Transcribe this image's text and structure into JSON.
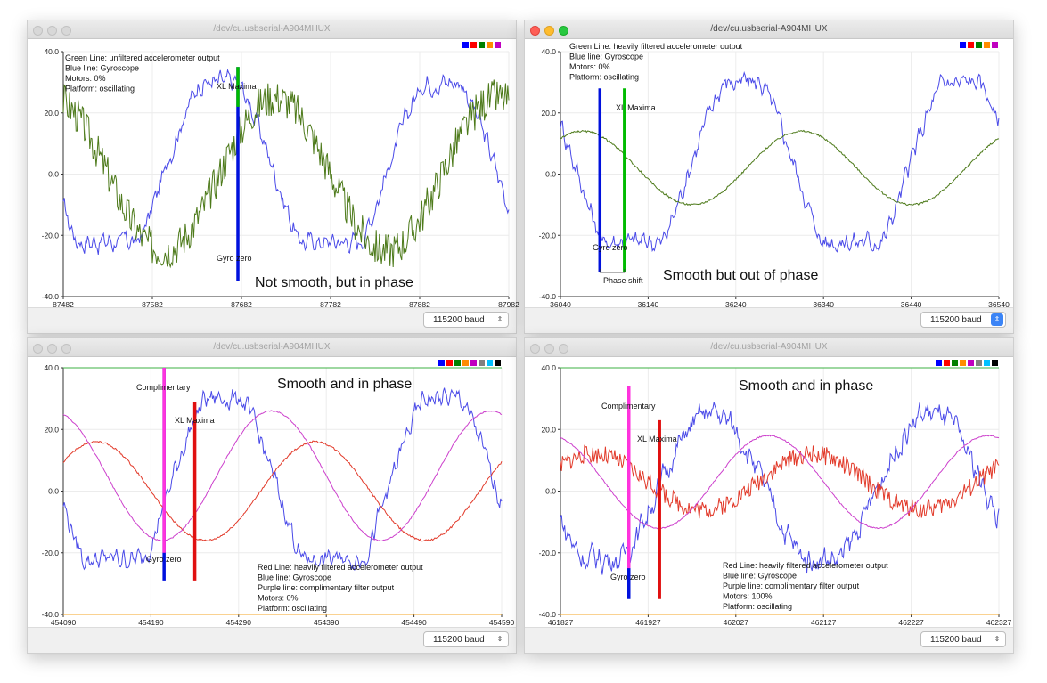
{
  "windows": [
    {
      "id": "w1",
      "active": false,
      "title": "/dev/cu.usbserial-A904MHUX",
      "baud_label": "115200 baud",
      "swatches": [
        "#0000ff",
        "#ff0000",
        "#008000",
        "#ff8c00",
        "#c000c0"
      ],
      "info_lines": [
        "Green Line:  unfiltered accelerometer output",
        "Blue line:  Gyroscope",
        "Motors:  0%",
        "Platform:  oscillating"
      ],
      "caption": "Not smooth, but in phase",
      "marker_labels": [
        "XL Maxima",
        "Gyro zero"
      ]
    },
    {
      "id": "w2",
      "active": true,
      "title": "/dev/cu.usbserial-A904MHUX",
      "baud_label": "115200 baud",
      "swatches": [
        "#0000ff",
        "#ff0000",
        "#008000",
        "#ff8c00",
        "#c000c0"
      ],
      "info_lines": [
        "Green Line:  heavily filtered accelerometer output",
        "Blue line:  Gyroscope",
        "Motors:  0%",
        "Platform:  oscillating"
      ],
      "caption": "Smooth but out of phase",
      "marker_labels": [
        "XL Maxima",
        "Gyro zero",
        "Phase shift"
      ]
    },
    {
      "id": "w3",
      "active": false,
      "title": "/dev/cu.usbserial-A904MHUX",
      "baud_label": "115200 baud",
      "swatches": [
        "#0000ff",
        "#ff0000",
        "#008000",
        "#ff8c00",
        "#c000c0",
        "#808080",
        "#00c0ff",
        "#000000"
      ],
      "info_lines": [
        "Red Line:  heavily filtered accelerometer output",
        "Blue line:  Gyroscope",
        "Purple line: complimentary filter output",
        "Motors:  0%",
        "Platform:  oscillating"
      ],
      "caption": "Smooth and in phase",
      "marker_labels": [
        "Complimentary",
        "XL Maxima",
        "Gyro zero"
      ]
    },
    {
      "id": "w4",
      "active": false,
      "title": "/dev/cu.usbserial-A904MHUX",
      "baud_label": "115200 baud",
      "swatches": [
        "#0000ff",
        "#ff0000",
        "#008000",
        "#ff8c00",
        "#c000c0",
        "#808080",
        "#00c0ff",
        "#000000"
      ],
      "info_lines": [
        "Red Line:  heavily filtered accelerometer output",
        "Blue line:  Gyroscope",
        "Purple line: complimentary filter output",
        "Motors:  100%",
        "Platform:  oscillating"
      ],
      "caption": "Smooth and in phase",
      "marker_labels": [
        "Complimentary",
        "XL Maxima",
        "Gyro zero"
      ]
    }
  ],
  "chart_data": [
    {
      "type": "line",
      "window": "w1",
      "x_ticks": [
        "87482",
        "87582",
        "87682",
        "87782",
        "87882",
        "87982"
      ],
      "y_ticks": [
        "40.0",
        "20.0",
        "0.0",
        "-20.0",
        "-40.0"
      ],
      "xlim": [
        87482,
        87982
      ],
      "ylim": [
        -40,
        40
      ],
      "series": [
        {
          "color": "#4a4ae8",
          "kind": "gyro",
          "period": 250,
          "phase": 0.55,
          "amp": 30,
          "offset": 0,
          "noise": 2.2,
          "clip": 22
        },
        {
          "color": "#4d7a1a",
          "kind": "sine",
          "period": 250,
          "phase": 0.3,
          "amp": 25,
          "offset": 0,
          "noise": 6
        }
      ],
      "markers": [
        {
          "x": 87678,
          "y1": 35,
          "y2": -35,
          "color": "#0011dd"
        },
        {
          "x": 87678,
          "y1": 35,
          "y2": 22,
          "color": "#00bb00"
        }
      ]
    },
    {
      "type": "line",
      "window": "w2",
      "x_ticks": [
        "36040",
        "36140",
        "36240",
        "36340",
        "36440",
        "36540"
      ],
      "y_ticks": [
        "40.0",
        "20.0",
        "0.0",
        "-20.0",
        "-40.0"
      ],
      "xlim": [
        36040,
        36540
      ],
      "ylim": [
        -40,
        40
      ],
      "series": [
        {
          "color": "#4a4ae8",
          "kind": "gyro",
          "period": 250,
          "phase": 0.42,
          "amp": 30,
          "offset": 0,
          "noise": 2.2,
          "clip": 22
        },
        {
          "color": "#4d7a1a",
          "kind": "sine",
          "period": 250,
          "phase": 0.15,
          "amp": 12,
          "offset": 2,
          "noise": 0.3
        }
      ],
      "markers": [
        {
          "x": 36085,
          "y1": 28,
          "y2": -32,
          "color": "#0011dd"
        },
        {
          "x": 36113,
          "y1": 28,
          "y2": -32,
          "color": "#00bb00"
        }
      ]
    },
    {
      "type": "line",
      "window": "w3",
      "x_ticks": [
        "454090",
        "454190",
        "454290",
        "454390",
        "454490",
        "454590"
      ],
      "y_ticks": [
        "40.0",
        "20.0",
        "0.0",
        "-20.0",
        "-40.0"
      ],
      "xlim": [
        454090,
        454590
      ],
      "ylim": [
        -40,
        40
      ],
      "series": [
        {
          "color": "#4a4ae8",
          "kind": "gyro",
          "period": 250,
          "phase": 0.52,
          "amp": 30,
          "offset": 0,
          "noise": 2.2,
          "clip": 22
        },
        {
          "color": "#e23a2a",
          "kind": "sine",
          "period": 250,
          "phase": 0.1,
          "amp": 16,
          "offset": 0,
          "noise": 0.3
        },
        {
          "color": "#cc3fcc",
          "kind": "sine",
          "period": 250,
          "phase": 0.3,
          "amp": 21,
          "offset": 5,
          "noise": 0.2
        },
        {
          "color": "#3cb043",
          "kind": "flat",
          "value": 40
        },
        {
          "color": "#f5a623",
          "kind": "flat",
          "value": -40
        }
      ],
      "markers": [
        {
          "x": 454205,
          "y1": 40,
          "y2": -29,
          "color": "#0011dd"
        },
        {
          "x": 454205,
          "y1": 40,
          "y2": -20,
          "color": "#ff33dd"
        },
        {
          "x": 454240,
          "y1": 29,
          "y2": -29,
          "color": "#e01010"
        }
      ]
    },
    {
      "type": "line",
      "window": "w4",
      "x_ticks": [
        "461827",
        "461927",
        "462027",
        "462127",
        "462227",
        "462327"
      ],
      "y_ticks": [
        "40.0",
        "20.0",
        "0.0",
        "-20.0",
        "-40.0"
      ],
      "xlim": [
        461827,
        462327
      ],
      "ylim": [
        -40,
        40
      ],
      "series": [
        {
          "color": "#4a4ae8",
          "kind": "gyro",
          "period": 250,
          "phase": 0.56,
          "amp": 22,
          "offset": 0,
          "noise": 3.0,
          "clip": 22
        },
        {
          "color": "#e23a2a",
          "kind": "sine",
          "period": 250,
          "phase": 0.1,
          "amp": 9,
          "offset": 3,
          "noise": 3.0
        },
        {
          "color": "#cc3fcc",
          "kind": "sine",
          "period": 250,
          "phase": 0.3,
          "amp": 15,
          "offset": 3,
          "noise": 0.2
        },
        {
          "color": "#3cb043",
          "kind": "flat",
          "value": 40
        },
        {
          "color": "#f5a623",
          "kind": "flat",
          "value": -40
        }
      ],
      "markers": [
        {
          "x": 461905,
          "y1": 34,
          "y2": -35,
          "color": "#0011dd"
        },
        {
          "x": 461905,
          "y1": 34,
          "y2": -25,
          "color": "#ff33dd"
        },
        {
          "x": 461940,
          "y1": 23,
          "y2": -35,
          "color": "#e01010"
        }
      ]
    }
  ]
}
